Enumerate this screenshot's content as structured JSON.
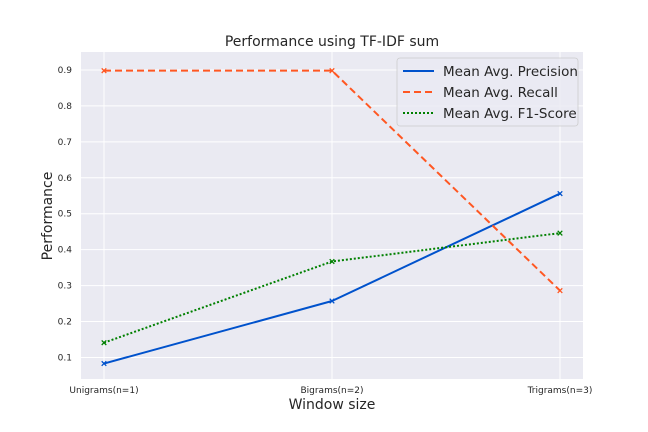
{
  "chart_data": {
    "type": "line",
    "title": "Performance using TF-IDF sum",
    "xlabel": "Window size",
    "ylabel": "Performance",
    "categories": [
      "Unigrams(n=1)",
      "Bigrams(n=2)",
      "Trigrams(n=3)"
    ],
    "ylim": [
      0.04,
      0.95
    ],
    "yticks": [
      0.1,
      0.2,
      0.3,
      0.4,
      0.5,
      0.6,
      0.7,
      0.8,
      0.9
    ],
    "ytick_labels": [
      "0.1",
      "0.2",
      "0.3",
      "0.4",
      "0.5",
      "0.6",
      "0.7",
      "0.8",
      "0.9"
    ],
    "grid": true,
    "legend_position": "top-right",
    "series": [
      {
        "name": "Mean Avg. Precision",
        "values": [
          0.083,
          0.257,
          0.556
        ],
        "color": "#0052cc",
        "style": "solid"
      },
      {
        "name": "Mean Avg. Recall",
        "values": [
          0.898,
          0.898,
          0.286
        ],
        "color": "#ff5722",
        "style": "dashed"
      },
      {
        "name": "Mean Avg. F1-Score",
        "values": [
          0.141,
          0.367,
          0.446
        ],
        "color": "#008000",
        "style": "dotted"
      }
    ]
  }
}
